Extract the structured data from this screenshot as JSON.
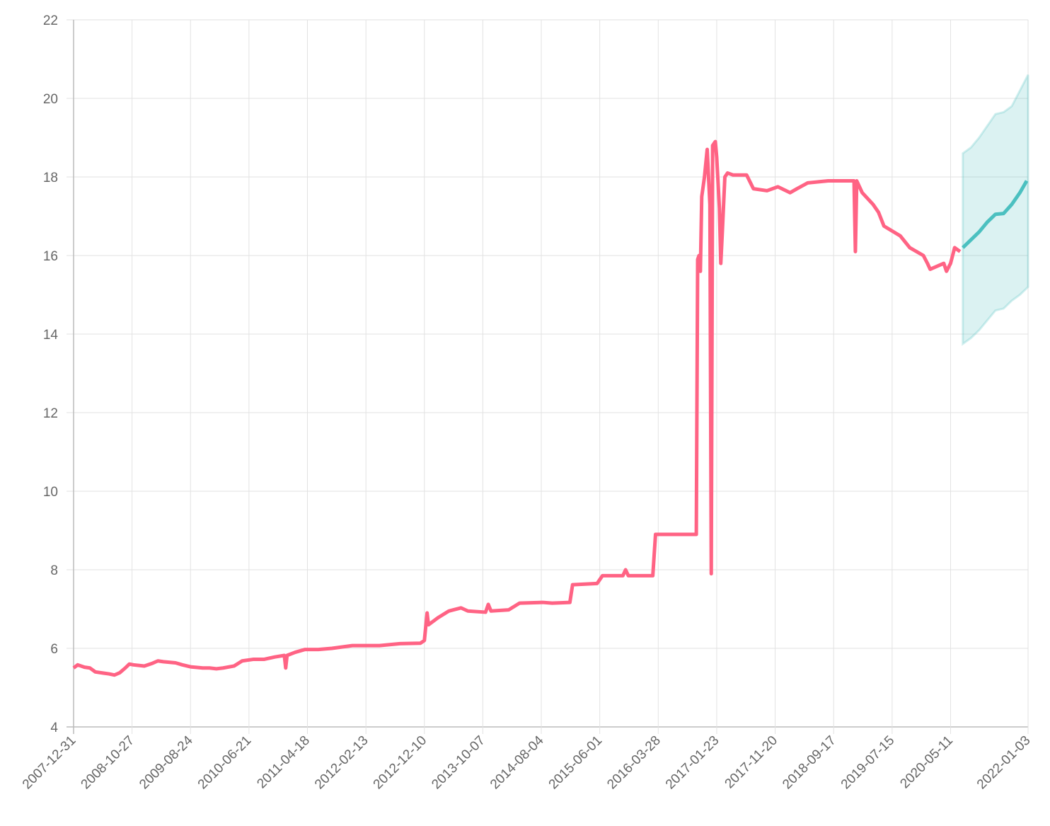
{
  "chart_data": {
    "type": "line",
    "grid": true,
    "xlim": [
      0,
      702
    ],
    "xticks": [
      {
        "value": 0,
        "label": "2007-12-31"
      },
      {
        "value": 43,
        "label": "2008-10-27"
      },
      {
        "value": 86,
        "label": "2009-08-24"
      },
      {
        "value": 129,
        "label": "2010-06-21"
      },
      {
        "value": 172,
        "label": "2011-04-18"
      },
      {
        "value": 215,
        "label": "2012-02-13"
      },
      {
        "value": 258,
        "label": "2012-12-10"
      },
      {
        "value": 301,
        "label": "2013-10-07"
      },
      {
        "value": 344,
        "label": "2014-08-04"
      },
      {
        "value": 387,
        "label": "2015-06-01"
      },
      {
        "value": 430,
        "label": "2016-03-28"
      },
      {
        "value": 473,
        "label": "2017-01-23"
      },
      {
        "value": 516,
        "label": "2017-11-20"
      },
      {
        "value": 559,
        "label": "2018-09-17"
      },
      {
        "value": 602,
        "label": "2019-07-15"
      },
      {
        "value": 645,
        "label": "2020-05-11"
      },
      {
        "value": 702,
        "label": "2022-01-03"
      }
    ],
    "ylim": [
      4,
      22
    ],
    "yticks": [
      4,
      6,
      8,
      10,
      12,
      14,
      16,
      18,
      20,
      22
    ],
    "band": {
      "color": "#4bc0c0",
      "x": [
        654,
        660,
        666,
        672,
        678,
        684,
        690,
        696,
        702
      ],
      "upper": [
        18.6,
        18.75,
        19.0,
        19.3,
        19.6,
        19.65,
        19.8,
        20.2,
        20.6
      ],
      "lower": [
        13.75,
        13.9,
        14.1,
        14.35,
        14.6,
        14.65,
        14.85,
        15.0,
        15.2
      ]
    },
    "series": [
      {
        "color": "#ff6384",
        "x": [
          0,
          3,
          8,
          12,
          16,
          22,
          26,
          30,
          34,
          38,
          41,
          44,
          52,
          58,
          62,
          66,
          75,
          80,
          86,
          95,
          100,
          105,
          110,
          118,
          124,
          132,
          140,
          148,
          155,
          156,
          157,
          163,
          170,
          180,
          190,
          205,
          225,
          240,
          255,
          258,
          260,
          261,
          268,
          276,
          285,
          290,
          303,
          305,
          307,
          320,
          328,
          345,
          352,
          365,
          367,
          385,
          389,
          404,
          406,
          408,
          426,
          428,
          458,
          459,
          460,
          461,
          462,
          464,
          466,
          467,
          468,
          469,
          470,
          472,
          473,
          475,
          476,
          477,
          479,
          481,
          485,
          495,
          500,
          510,
          518,
          527,
          532,
          540,
          555,
          570,
          574,
          575,
          576,
          580,
          588,
          592,
          596,
          608,
          615,
          625,
          628,
          630,
          640,
          642,
          645,
          648,
          652
        ],
        "values": [
          5.5,
          5.58,
          5.52,
          5.5,
          5.4,
          5.37,
          5.35,
          5.32,
          5.38,
          5.5,
          5.6,
          5.58,
          5.55,
          5.62,
          5.68,
          5.66,
          5.63,
          5.58,
          5.53,
          5.5,
          5.5,
          5.48,
          5.5,
          5.55,
          5.68,
          5.72,
          5.72,
          5.78,
          5.82,
          5.5,
          5.82,
          5.9,
          5.97,
          5.97,
          6.0,
          6.07,
          6.07,
          6.12,
          6.13,
          6.2,
          6.9,
          6.6,
          6.78,
          6.95,
          7.03,
          6.95,
          6.92,
          7.12,
          6.95,
          6.98,
          7.15,
          7.17,
          7.15,
          7.17,
          7.62,
          7.65,
          7.85,
          7.85,
          8.0,
          7.85,
          7.85,
          8.9,
          8.9,
          15.9,
          16.0,
          15.6,
          17.5,
          18.0,
          18.7,
          18.0,
          17.3,
          7.9,
          18.8,
          18.9,
          18.5,
          17.2,
          15.8,
          16.5,
          18.0,
          18.1,
          18.05,
          18.05,
          17.7,
          17.65,
          17.75,
          17.6,
          17.7,
          17.85,
          17.9,
          17.9,
          17.9,
          16.1,
          17.9,
          17.6,
          17.3,
          17.1,
          16.75,
          16.5,
          16.2,
          16.0,
          15.8,
          15.65,
          15.8,
          15.6,
          15.8,
          16.2,
          16.1
        ]
      },
      {
        "color": "#4bc0c0",
        "x": [
          654,
          660,
          666,
          672,
          678,
          684,
          690,
          696,
          701
        ],
        "values": [
          16.2,
          16.4,
          16.6,
          16.85,
          17.05,
          17.07,
          17.3,
          17.6,
          17.9
        ]
      }
    ]
  }
}
